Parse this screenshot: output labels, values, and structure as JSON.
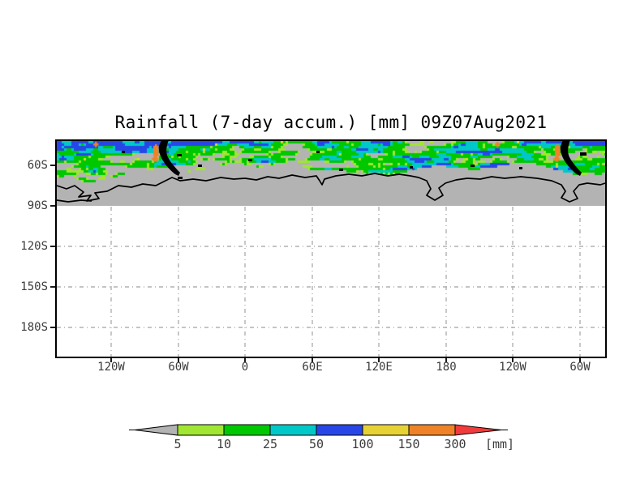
{
  "title": "Rainfall (7-day accum.) [mm] 09Z07Aug2021",
  "y_axis": {
    "labels": [
      "60S",
      "90S",
      "120S",
      "150S",
      "180S"
    ]
  },
  "x_axis": {
    "labels": [
      "120W",
      "60W",
      "0",
      "60E",
      "120E",
      "180",
      "120W",
      "60W"
    ]
  },
  "colorbar": {
    "tick_labels": [
      "5",
      "10",
      "25",
      "50",
      "100",
      "150",
      "300"
    ],
    "unit": "[mm]",
    "segment_colors": [
      "#a0e632",
      "#00c800",
      "#00c8c8",
      "#2846e8",
      "#e6d234",
      "#ef8228"
    ],
    "low_arrow_color": "#b3b3b3",
    "high_arrow_color": "#f03c3c"
  },
  "colors": {
    "background": "#ffffff",
    "map_gray": "#b3b3b3",
    "grid": "#b0b0b0",
    "frame": "#000000",
    "coastline": "#000000",
    "label": "#3c3c3c",
    "palette": {
      "gray": "#b3b3b3",
      "lightgreen": "#a0e632",
      "green": "#00c800",
      "cyan": "#00c8c8",
      "blue": "#2846e8",
      "yellow": "#e6d234",
      "orange": "#ef8228",
      "red": "#f03c3c"
    }
  },
  "chart_data": {
    "type": "heatmap",
    "title": "Rainfall (7-day accum.) [mm] 09Z07Aug2021",
    "variable": "7-day accumulated rainfall",
    "unit": "mm",
    "valid_time": "09Z07Aug2021",
    "levels_mm": [
      5,
      10,
      25,
      50,
      100,
      150,
      300
    ],
    "level_colors": [
      "#b3b3b3",
      "#a0e632",
      "#00c800",
      "#00c8c8",
      "#2846e8",
      "#e6d234",
      "#ef8228",
      "#f03c3c"
    ],
    "x_tick_labels": [
      "120W",
      "60W",
      "0",
      "60E",
      "120E",
      "180",
      "120W",
      "60W"
    ],
    "y_tick_labels": [
      "60S",
      "90S",
      "120S",
      "150S",
      "180S"
    ],
    "legend_position": "bottom",
    "grid": "dash-dot gray, below 90S only",
    "description": "Speckled rainfall band (green/cyan/blue with sparse yellow-orange) over the Southern Ocean north of the Antarctic coastline on a gray no-data background; area south of 90S is blank white"
  }
}
